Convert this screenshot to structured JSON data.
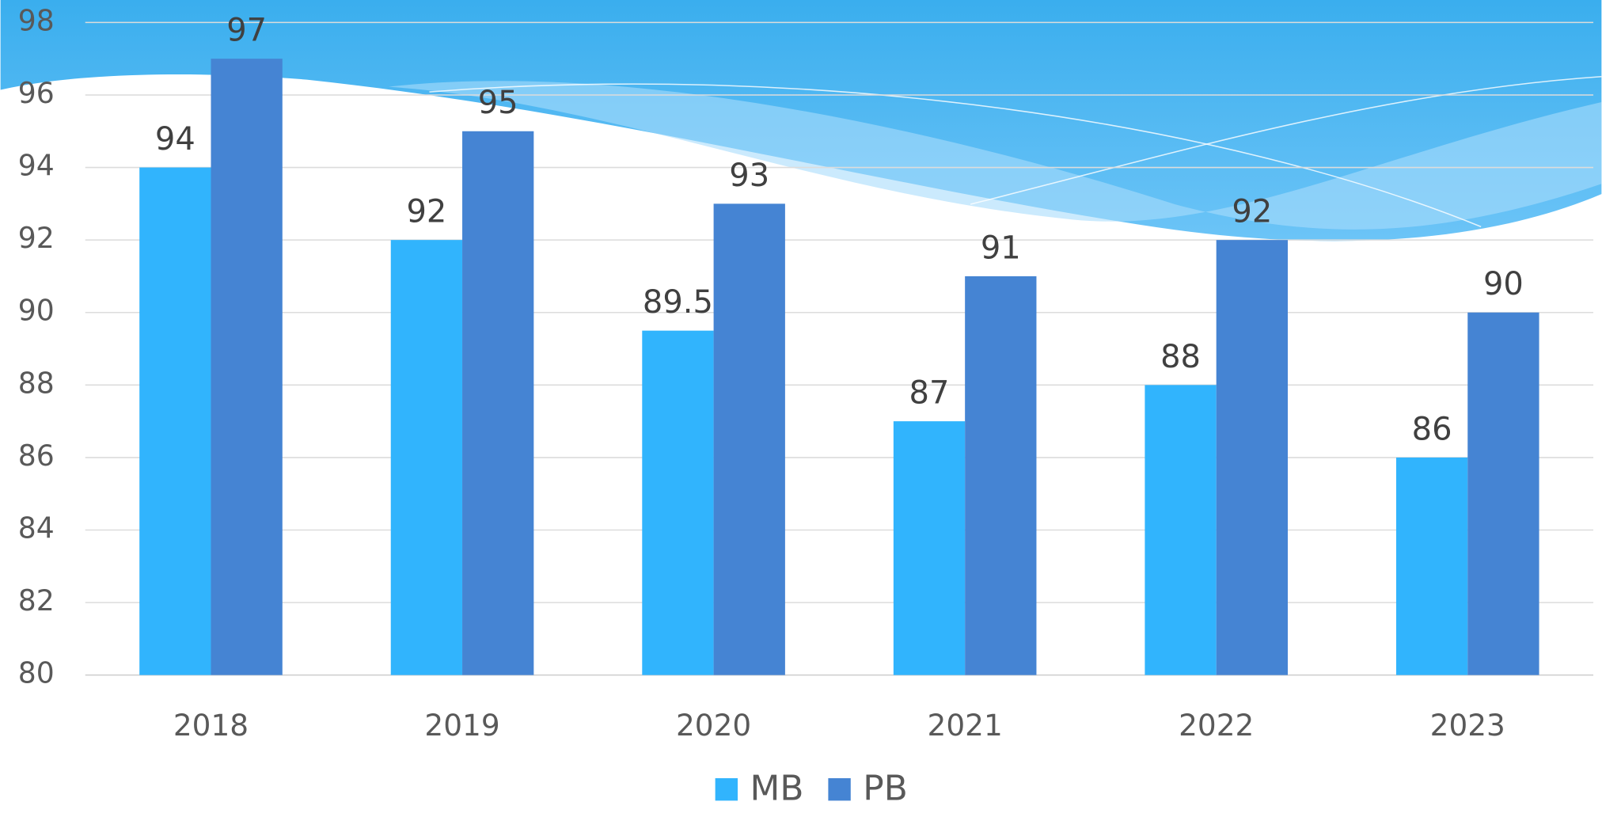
{
  "chart_data": {
    "type": "bar",
    "categories": [
      "2018",
      "2019",
      "2020",
      "2021",
      "2022",
      "2023"
    ],
    "series": [
      {
        "name": "MB",
        "color": "#31b4fd",
        "values": [
          94,
          92,
          89.5,
          87,
          88,
          86
        ]
      },
      {
        "name": "PB",
        "color": "#4584d3",
        "values": [
          97,
          95,
          93,
          91,
          92,
          90
        ]
      }
    ],
    "ylim": [
      80,
      98
    ],
    "yticks": [
      80,
      82,
      84,
      86,
      88,
      90,
      92,
      94,
      96,
      98
    ],
    "grid": true,
    "legend": "bottom"
  }
}
